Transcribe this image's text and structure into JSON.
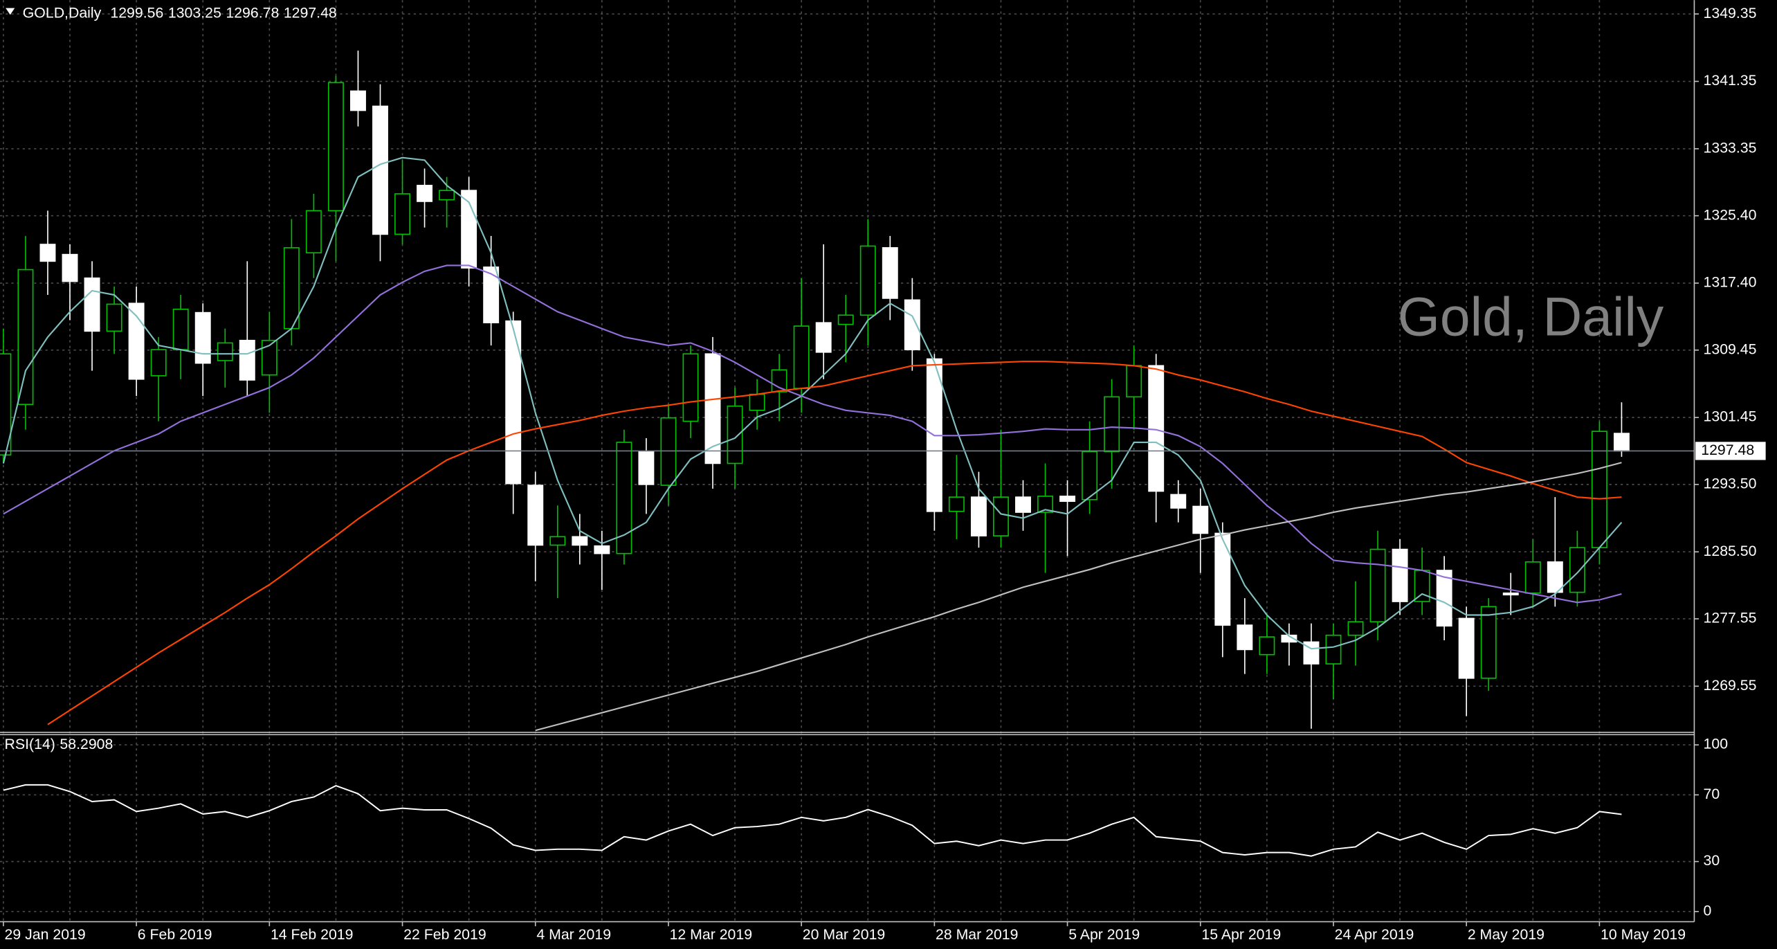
{
  "chart_data": [
    {
      "type": "candlestick",
      "title": "GOLD,Daily",
      "watermark": "Gold, Daily",
      "categories": [
        "29 Jan 2019",
        null,
        null,
        null,
        null,
        null,
        "6 Feb 2019",
        null,
        null,
        null,
        null,
        null,
        "14 Feb 2019",
        null,
        null,
        null,
        null,
        null,
        "22 Feb 2019",
        null,
        null,
        null,
        null,
        null,
        "4 Mar 2019",
        null,
        null,
        null,
        null,
        null,
        "12 Mar 2019",
        null,
        null,
        null,
        null,
        null,
        "20 Mar 2019",
        null,
        null,
        null,
        null,
        null,
        "28 Mar 2019",
        null,
        null,
        null,
        null,
        null,
        "5 Apr 2019",
        null,
        null,
        null,
        null,
        null,
        "15 Apr 2019",
        null,
        null,
        null,
        null,
        null,
        "24 Apr 2019",
        null,
        null,
        null,
        null,
        null,
        "2 May 2019",
        null,
        null,
        null,
        null,
        null,
        "10 May 2019",
        null
      ],
      "open": [
        1297,
        1303,
        1322,
        1320.8,
        1318,
        1311.7,
        1315,
        1306.4,
        1309.5,
        1313.9,
        1308.2,
        1310.6,
        1306.5,
        1312,
        1321,
        1326,
        1340.2,
        1338.4,
        1323.2,
        1329,
        1327.3,
        1328.4,
        1319.3,
        1312.9,
        1293.4,
        1286.3,
        1287.3,
        1286.2,
        1285.3,
        1297.4,
        1293.4,
        1301,
        1309,
        1296,
        1302.3,
        1304.5,
        1304.9,
        1312.7,
        1312.5,
        1313.6,
        1321.6,
        1315.4,
        1308.4,
        1290.3,
        1292,
        1287.4,
        1292,
        1290.2,
        1292.1,
        1291.7,
        1297.4,
        1303.9,
        1307.6,
        1292.3,
        1290.9,
        1287.7,
        1276.8,
        1273.3,
        1275.6,
        1274.8,
        1272.2,
        1275.6,
        1277.2,
        1285.8,
        1279.6,
        1283.3,
        1277.6,
        1270.5,
        1280.6,
        1280.6,
        1284.3,
        1280.7,
        1286,
        1299.56
      ],
      "high": [
        1312,
        1323,
        1326,
        1322,
        1320,
        1317,
        1317,
        1311,
        1316,
        1315,
        1312,
        1320,
        1314,
        1325,
        1328,
        1342,
        1345,
        1341,
        1332,
        1331,
        1330,
        1330,
        1323,
        1314,
        1295,
        1291,
        1290,
        1288,
        1300,
        1299,
        1303,
        1310,
        1311,
        1305,
        1306,
        1309,
        1318,
        1322,
        1316,
        1325,
        1323,
        1318,
        1309,
        1297,
        1295,
        1300,
        1294,
        1296,
        1294,
        1301,
        1306,
        1310,
        1309,
        1294,
        1293,
        1289,
        1280,
        1278,
        1277,
        1277,
        1277,
        1282,
        1288,
        1287,
        1286,
        1285,
        1279,
        1280,
        1283,
        1287,
        1292,
        1288,
        1301,
        1303.25
      ],
      "low": [
        1296,
        1300,
        1316,
        1313,
        1307,
        1309,
        1304,
        1301,
        1306,
        1304,
        1305,
        1304,
        1302,
        1310,
        1318,
        1320,
        1336,
        1320,
        1322,
        1324,
        1324,
        1317,
        1310,
        1290,
        1282,
        1280,
        1284,
        1281,
        1284,
        1290,
        1291,
        1299,
        1293,
        1293,
        1300,
        1301,
        1302,
        1306,
        1308,
        1310,
        1313,
        1307,
        1288,
        1287,
        1286,
        1286,
        1288,
        1283,
        1285,
        1290,
        1293,
        1300,
        1289,
        1289,
        1283,
        1273,
        1271,
        1271,
        1272,
        1264.5,
        1268,
        1272,
        1275,
        1278,
        1278,
        1275,
        1266,
        1269,
        1278,
        1279,
        1279,
        1279,
        1284,
        1296.78
      ],
      "close": [
        1309,
        1319,
        1320,
        1317.6,
        1311.7,
        1314.9,
        1306,
        1309.5,
        1314.3,
        1307.9,
        1310.3,
        1305.9,
        1310.6,
        1321.6,
        1326,
        1341.2,
        1337.9,
        1323.2,
        1328,
        1327.1,
        1328.4,
        1319.2,
        1312.7,
        1293.6,
        1286.3,
        1287.3,
        1286.3,
        1285.3,
        1298.5,
        1293.5,
        1301.4,
        1309,
        1296,
        1302.8,
        1304.2,
        1307.1,
        1312.3,
        1309.2,
        1313.6,
        1321.8,
        1315.6,
        1309.5,
        1290.3,
        1292,
        1287.4,
        1292,
        1290.2,
        1292.1,
        1291.5,
        1297.4,
        1303.9,
        1307.6,
        1292.7,
        1290.7,
        1287.7,
        1276.8,
        1273.9,
        1275.4,
        1274.8,
        1272.2,
        1275.6,
        1277.2,
        1285.8,
        1279.6,
        1283.3,
        1276.7,
        1270.5,
        1279,
        1280.4,
        1284.3,
        1280.7,
        1286,
        1299.8,
        1297.48
      ],
      "up_color": "#00c000",
      "down_color": "#ffffff",
      "overlays": [
        {
          "color": "#7fbfbf",
          "values": [
            1296,
            1307,
            1311,
            1314,
            1316.5,
            1316,
            1313.5,
            1310,
            1309.5,
            1309,
            1309,
            1309,
            1310,
            1312,
            1317,
            1324,
            1330,
            1331.5,
            1332.3,
            1332,
            1329,
            1327,
            1321,
            1312,
            1302,
            1294,
            1288,
            1286.5,
            1287.5,
            1289,
            1293,
            1296.5,
            1298,
            1299,
            1301.5,
            1302.5,
            1304,
            1306.5,
            1309,
            1313,
            1315,
            1313.5,
            1308,
            1300,
            1293,
            1290,
            1289.5,
            1290.5,
            1290,
            1292,
            1294,
            1298.5,
            1298.5,
            1297,
            1294,
            1287,
            1281.5,
            1278,
            1275.5,
            1274,
            1274.2,
            1275,
            1276.5,
            1278.5,
            1280.5,
            1279.5,
            1278,
            1278,
            1278.3,
            1279,
            1280.5,
            1283,
            1286,
            1289
          ]
        },
        {
          "color": "#9370db",
          "values": [
            1290,
            1291.5,
            1293,
            1294.5,
            1296,
            1297.5,
            1298.5,
            1299.5,
            1301,
            1302,
            1303,
            1304,
            1305,
            1306.5,
            1308.5,
            1311,
            1313.5,
            1316,
            1317.5,
            1318.8,
            1319.5,
            1319.5,
            1318.5,
            1317,
            1315.5,
            1314,
            1313,
            1312,
            1311,
            1310.5,
            1310,
            1310.3,
            1309.3,
            1308,
            1306.5,
            1305,
            1304,
            1303,
            1302.3,
            1302,
            1301.7,
            1301,
            1299.3,
            1299.3,
            1299.4,
            1299.6,
            1299.8,
            1300.1,
            1300,
            1300,
            1300.3,
            1300.2,
            1300,
            1299.3,
            1298,
            1296,
            1293.5,
            1291,
            1289,
            1286.5,
            1284.5,
            1284.2,
            1284,
            1283.7,
            1283.3,
            1282.5,
            1282,
            1281.5,
            1281,
            1280.5,
            1280,
            1279.5,
            1279.8,
            1280.5
          ]
        },
        {
          "color": "#ff4500",
          "values": [
            null,
            null,
            1265,
            1266.7,
            1268.4,
            1270.1,
            1271.8,
            1273.5,
            1275.1,
            1276.7,
            1278.3,
            1280,
            1281.6,
            1283.5,
            1285.5,
            1287.4,
            1289.4,
            1291.2,
            1293,
            1294.7,
            1296.4,
            1297.5,
            1298.5,
            1299.5,
            1300.1,
            1300.6,
            1301.1,
            1301.7,
            1302.2,
            1302.6,
            1302.9,
            1303.3,
            1303.6,
            1303.9,
            1304.2,
            1304.6,
            1304.9,
            1305.2,
            1305.8,
            1306.4,
            1307,
            1307.6,
            1307.7,
            1307.8,
            1307.9,
            1308,
            1308.1,
            1308.1,
            1308,
            1307.9,
            1307.8,
            1307.6,
            1307.2,
            1306.5,
            1305.9,
            1305.2,
            1304.5,
            1303.7,
            1303,
            1302.2,
            1301.6,
            1301,
            1300.4,
            1299.8,
            1299.2,
            1297.7,
            1296.1,
            1295.3,
            1294.5,
            1293.6,
            1292.8,
            1292,
            1291.8,
            1292
          ]
        },
        {
          "color": "#c0c0c0",
          "values": [
            null,
            null,
            null,
            null,
            null,
            null,
            null,
            null,
            null,
            null,
            null,
            null,
            null,
            null,
            null,
            null,
            null,
            null,
            null,
            null,
            null,
            null,
            null,
            null,
            1264.3,
            1265,
            1265.7,
            1266.4,
            1267.1,
            1267.8,
            1268.5,
            1269.2,
            1269.9,
            1270.6,
            1271.3,
            1272.1,
            1272.9,
            1273.7,
            1274.5,
            1275.4,
            1276.2,
            1277,
            1277.8,
            1278.7,
            1279.5,
            1280.4,
            1281.3,
            1282,
            1282.7,
            1283.4,
            1284.2,
            1284.9,
            1285.6,
            1286.3,
            1287,
            1287.5,
            1288.1,
            1288.6,
            1289.1,
            1289.6,
            1290.2,
            1290.7,
            1291.1,
            1291.5,
            1291.9,
            1292.3,
            1292.6,
            1293,
            1293.4,
            1293.8,
            1294.3,
            1294.8,
            1295.4,
            1296.1
          ]
        }
      ],
      "ylim": [
        1264.2,
        1351.0
      ],
      "yticks": [
        1349.35,
        1341.35,
        1333.35,
        {
          "value": 1325.4,
          "label": "1325.40"
        },
        {
          "value": 1317.4,
          "label": "1317.40"
        },
        1309.45,
        1301.45,
        {
          "value": 1293.5,
          "label": "1293.50"
        },
        {
          "value": 1285.5,
          "label": "1285.50"
        },
        1277.55,
        1269.55
      ],
      "grid": true
    },
    {
      "type": "line",
      "title": "RSI(14)",
      "color": "#ffffff",
      "values": [
        72.8,
        76,
        76,
        72,
        66,
        67,
        60,
        62,
        64.6,
        58.5,
        60,
        56.5,
        60.5,
        66,
        68.7,
        75.5,
        70.7,
        60.5,
        62,
        61,
        61,
        55.8,
        50,
        40,
        36.7,
        37.4,
        37.4,
        36.7,
        44.9,
        42.9,
        48.3,
        52.4,
        45.6,
        50.3,
        51,
        52.4,
        56.5,
        54.4,
        56.5,
        61.2,
        57,
        51.7,
        40.8,
        42.2,
        39.5,
        42.9,
        40.8,
        42.9,
        42.9,
        47,
        52.4,
        56.5,
        44.9,
        43.5,
        42.2,
        35.4,
        34,
        35.4,
        35.4,
        33.3,
        37.4,
        38.8,
        47.6,
        42.9,
        47,
        41.5,
        37.4,
        45.6,
        46.3,
        49.7,
        47,
        50.3,
        60,
        58.2908
      ],
      "ylim": [
        0,
        100
      ],
      "yticks": [
        100,
        70,
        30,
        0
      ],
      "grid": true
    }
  ]
}
